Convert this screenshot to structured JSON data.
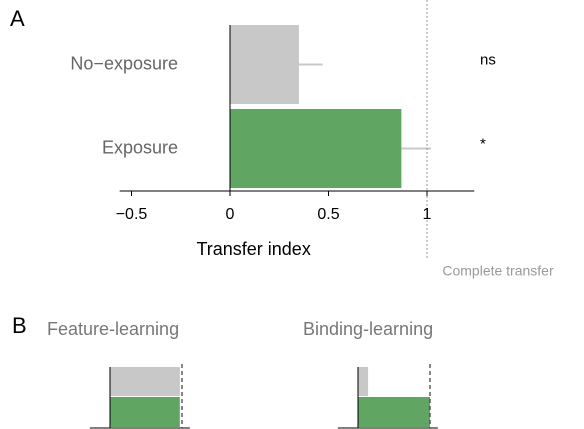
{
  "chart_data": [
    {
      "type": "bar",
      "orientation": "horizontal",
      "panel": "A",
      "categories": [
        "No−exposure",
        "Exposure"
      ],
      "values": [
        0.35,
        0.87
      ],
      "errors": [
        0.12,
        0.15
      ],
      "colors": [
        "#c8c8c8",
        "#60a561"
      ],
      "error_color": "#c8c8c8",
      "annotations": [
        "ns",
        "*"
      ],
      "xlabel": "Transfer index",
      "xlim": [
        -0.56,
        1.24
      ],
      "xticks": [
        {
          "value": -0.5,
          "label": "−0.5"
        },
        0,
        0.5,
        1
      ],
      "reference_line": {
        "value": 1,
        "label": "Complete transfer"
      }
    },
    {
      "type": "bar",
      "orientation": "horizontal",
      "panel": "B",
      "title": "Feature-learning",
      "values": [
        0.97,
        0.97
      ],
      "colors": [
        "#c8c8c8",
        "#60a561"
      ],
      "xlim": [
        -0.28,
        1.11
      ],
      "reference_line": {
        "value": 1
      }
    },
    {
      "type": "bar",
      "orientation": "horizontal",
      "title": "Binding-learning",
      "values": [
        0.14,
        1.0
      ],
      "colors": [
        "#c8c8c8",
        "#60a561"
      ],
      "xlim": [
        -0.28,
        1.11
      ],
      "reference_line": {
        "value": 1
      }
    }
  ]
}
